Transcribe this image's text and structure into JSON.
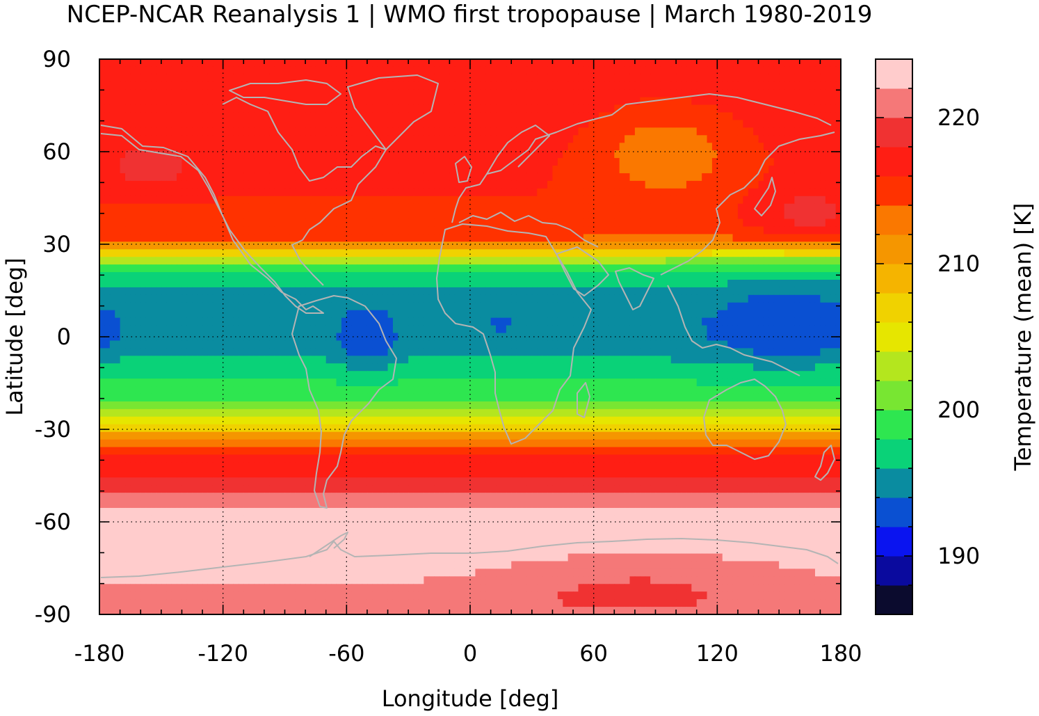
{
  "chart_data": {
    "type": "heatmap",
    "title": "NCEP-NCAR Reanalysis 1 | WMO first tropopause | March 1980-2019",
    "xlabel": "Longitude [deg]",
    "ylabel": "Latitude [deg]",
    "colorbar_label": "Temperature (mean) [K]",
    "xlim": [
      -180,
      180
    ],
    "ylim": [
      -90,
      90
    ],
    "x_ticks": [
      -180,
      -120,
      -60,
      0,
      60,
      120,
      180
    ],
    "y_ticks": [
      90,
      60,
      30,
      0,
      -30,
      -60,
      -90
    ],
    "x_tick_labels": [
      "-180",
      "-120",
      "-60",
      "0",
      "60",
      "120",
      "180"
    ],
    "y_tick_labels": [
      "90",
      "60",
      "30",
      "0",
      "-30",
      "-60",
      "-90"
    ],
    "colorbar_range": [
      186,
      224
    ],
    "colorbar_ticks": [
      190,
      200,
      210,
      220
    ],
    "colorbar_tick_labels": [
      "190",
      "200",
      "210",
      "220"
    ],
    "grid": true,
    "colors": [
      "#0b0b2e",
      "#0a0a9e",
      "#0a14f0",
      "#0a50d2",
      "#0a8ca0",
      "#0ad278",
      "#2ee650",
      "#78e632",
      "#b4e61e",
      "#e6e600",
      "#f0d200",
      "#f5b400",
      "#f59600",
      "#fa7800",
      "#ff3200",
      "#ff1e14",
      "#f03232",
      "#f57878",
      "#ffcccc"
    ],
    "latitude_profile": [
      {
        "lat": 90,
        "temp": 217
      },
      {
        "lat": 75,
        "temp": 217
      },
      {
        "lat": 60,
        "temp": 216.5
      },
      {
        "lat": 45,
        "temp": 216
      },
      {
        "lat": 35,
        "temp": 215.5
      },
      {
        "lat": 32,
        "temp": 214
      },
      {
        "lat": 30,
        "temp": 211
      },
      {
        "lat": 27,
        "temp": 206
      },
      {
        "lat": 24,
        "temp": 201
      },
      {
        "lat": 20,
        "temp": 198
      },
      {
        "lat": 15,
        "temp": 196
      },
      {
        "lat": 5,
        "temp": 195
      },
      {
        "lat": 0,
        "temp": 195
      },
      {
        "lat": -5,
        "temp": 195.5
      },
      {
        "lat": -10,
        "temp": 197
      },
      {
        "lat": -16,
        "temp": 198.5
      },
      {
        "lat": -20,
        "temp": 200
      },
      {
        "lat": -24,
        "temp": 203
      },
      {
        "lat": -28,
        "temp": 206
      },
      {
        "lat": -32,
        "temp": 210
      },
      {
        "lat": -36,
        "temp": 214
      },
      {
        "lat": -40,
        "temp": 216.5
      },
      {
        "lat": -46,
        "temp": 218.5
      },
      {
        "lat": -52,
        "temp": 221
      },
      {
        "lat": -58,
        "temp": 223
      },
      {
        "lat": -70,
        "temp": 223
      },
      {
        "lat": -80,
        "temp": 222
      },
      {
        "lat": -90,
        "temp": 221.5
      }
    ],
    "anomalies": [
      {
        "lon": 95,
        "lat": 60,
        "rlon": 38,
        "rlat": 16,
        "delta": -4
      },
      {
        "lon": 153,
        "lat": 5,
        "rlon": 45,
        "rlat": 18,
        "delta": -2.5
      },
      {
        "lon": -50,
        "lat": 0,
        "rlon": 16,
        "rlat": 14,
        "delta": -2.5
      },
      {
        "lon": 15,
        "lat": 5,
        "rlon": 10,
        "rlat": 8,
        "delta": -1.2
      },
      {
        "lon": -178,
        "lat": 3,
        "rlon": 10,
        "rlat": 10,
        "delta": -2.2
      },
      {
        "lon": -155,
        "lat": 55,
        "rlon": 22,
        "rlat": 8,
        "delta": 3
      },
      {
        "lon": 165,
        "lat": 40,
        "rlon": 28,
        "rlat": 9,
        "delta": 3
      },
      {
        "lon": 85,
        "lat": -78,
        "rlon": 70,
        "rlat": 10,
        "delta": -2
      },
      {
        "lon": 75,
        "lat": -85,
        "rlon": 40,
        "rlat": 4,
        "delta": -2.5
      }
    ]
  }
}
